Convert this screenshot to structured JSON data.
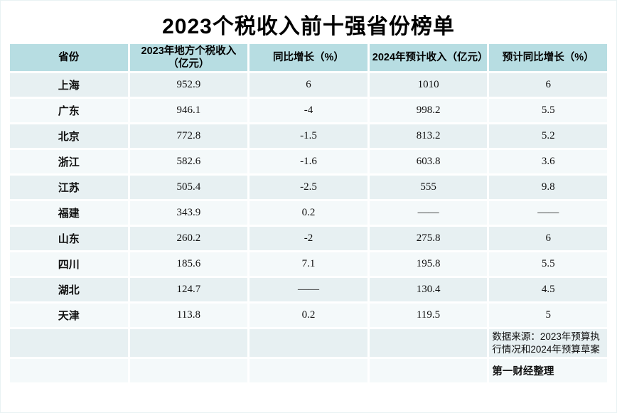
{
  "title": "2023个税收入前十强省份榜单",
  "colors": {
    "header_bg": "#b7dde2",
    "row_odd_bg": "#e7f0f2",
    "row_even_bg": "#f4f9fa",
    "page_bg": "#ffffff",
    "text": "#000000"
  },
  "table": {
    "headers": [
      "省份",
      "2023年地方个税收入（亿元）",
      "同比增长（%）",
      "2024年预计收入（亿元）",
      "预计同比增长（%）"
    ],
    "rows": [
      {
        "province": "上海",
        "income2023": "952.9",
        "yoy": "6",
        "forecast2024": "1010",
        "forecast_yoy": "6"
      },
      {
        "province": "广东",
        "income2023": "946.1",
        "yoy": "-4",
        "forecast2024": "998.2",
        "forecast_yoy": "5.5"
      },
      {
        "province": "北京",
        "income2023": "772.8",
        "yoy": "-1.5",
        "forecast2024": "813.2",
        "forecast_yoy": "5.2"
      },
      {
        "province": "浙江",
        "income2023": "582.6",
        "yoy": "-1.6",
        "forecast2024": "603.8",
        "forecast_yoy": "3.6"
      },
      {
        "province": "江苏",
        "income2023": "505.4",
        "yoy": "-2.5",
        "forecast2024": "555",
        "forecast_yoy": "9.8"
      },
      {
        "province": "福建",
        "income2023": "343.9",
        "yoy": "0.2",
        "forecast2024": "——",
        "forecast_yoy": "——"
      },
      {
        "province": "山东",
        "income2023": "260.2",
        "yoy": "-2",
        "forecast2024": "275.8",
        "forecast_yoy": "6"
      },
      {
        "province": "四川",
        "income2023": "185.6",
        "yoy": "7.1",
        "forecast2024": "195.8",
        "forecast_yoy": "5.5"
      },
      {
        "province": "湖北",
        "income2023": "124.7",
        "yoy": "——",
        "forecast2024": "130.4",
        "forecast_yoy": "4.5"
      },
      {
        "province": "天津",
        "income2023": "113.8",
        "yoy": "0.2",
        "forecast2024": "119.5",
        "forecast_yoy": "5"
      }
    ],
    "footer": {
      "source_note": "数据来源：2023年预算执行情况和2024年预算草案",
      "credit": "第一财经整理"
    }
  },
  "chart_data": {
    "type": "table",
    "title": "2023个税收入前十强省份榜单",
    "columns": [
      "省份",
      "2023年地方个税收入（亿元）",
      "同比增长（%）",
      "2024年预计收入（亿元）",
      "预计同比增长（%）"
    ],
    "rows": [
      [
        "上海",
        952.9,
        6,
        1010,
        6
      ],
      [
        "广东",
        946.1,
        -4,
        998.2,
        5.5
      ],
      [
        "北京",
        772.8,
        -1.5,
        813.2,
        5.2
      ],
      [
        "浙江",
        582.6,
        -1.6,
        603.8,
        3.6
      ],
      [
        "江苏",
        505.4,
        -2.5,
        555,
        9.8
      ],
      [
        "福建",
        343.9,
        0.2,
        null,
        null
      ],
      [
        "山东",
        260.2,
        -2,
        275.8,
        6
      ],
      [
        "四川",
        185.6,
        7.1,
        195.8,
        5.5
      ],
      [
        "湖北",
        124.7,
        null,
        130.4,
        4.5
      ],
      [
        "天津",
        113.8,
        0.2,
        119.5,
        5
      ]
    ],
    "missing_value_display": "——",
    "source": "数据来源：2023年预算执行情况和2024年预算草案",
    "credit": "第一财经整理"
  }
}
